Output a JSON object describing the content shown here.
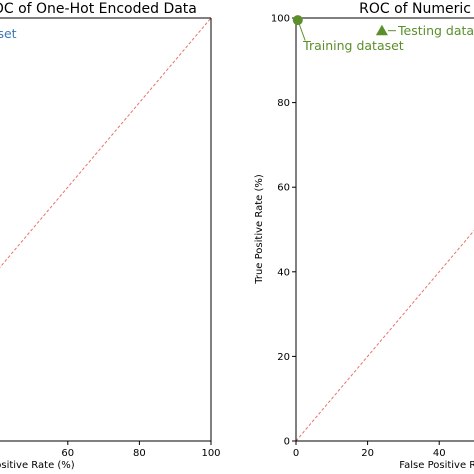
{
  "colors": {
    "axis": "#000000",
    "diagonal": "#e8736e",
    "training": "#5b8f2a",
    "testing": "#5b8f2a",
    "left_annotation": "#3a78b8"
  },
  "chart_data": [
    {
      "type": "scatter",
      "title": "ROC of One-Hot Encoded Data",
      "xlabel": "False Positive Rate (%)",
      "ylabel": "",
      "xlim": [
        0,
        100
      ],
      "ylim": [
        0,
        100
      ],
      "x_ticks": [
        "60",
        "80",
        "100"
      ],
      "y_ticks": [],
      "annotations": [
        {
          "text": "Training dataset"
        }
      ],
      "reference_line": {
        "x": [
          0,
          100
        ],
        "y": [
          0,
          100
        ],
        "style": "dashed"
      },
      "series": [],
      "grid": false,
      "visible_x_range": [
        17,
        100
      ]
    },
    {
      "type": "scatter",
      "title": "ROC of Numeric Data",
      "xlabel": "False Positive Rate (%)",
      "ylabel": "True Positive Rate (%)",
      "xlim": [
        0,
        100
      ],
      "ylim": [
        0,
        100
      ],
      "x_ticks": [
        "0",
        "20",
        "40"
      ],
      "y_ticks": [
        "0",
        "20",
        "40",
        "60",
        "80",
        "100"
      ],
      "reference_line": {
        "x": [
          0,
          100
        ],
        "y": [
          0,
          100
        ],
        "style": "dashed"
      },
      "series": [
        {
          "name": "Training dataset",
          "marker": "circle",
          "x": [
            0.5
          ],
          "y": [
            99.5
          ]
        },
        {
          "name": "Testing dataset",
          "marker": "triangle",
          "x": [
            24
          ],
          "y": [
            97
          ]
        }
      ],
      "annotations": [
        {
          "text": "Training dataset",
          "x": 2,
          "y": 93.5
        },
        {
          "text": "Testing dataset",
          "x": 28.5,
          "y": 97
        }
      ],
      "grid": false,
      "visible_x_range": [
        0,
        45
      ]
    }
  ]
}
